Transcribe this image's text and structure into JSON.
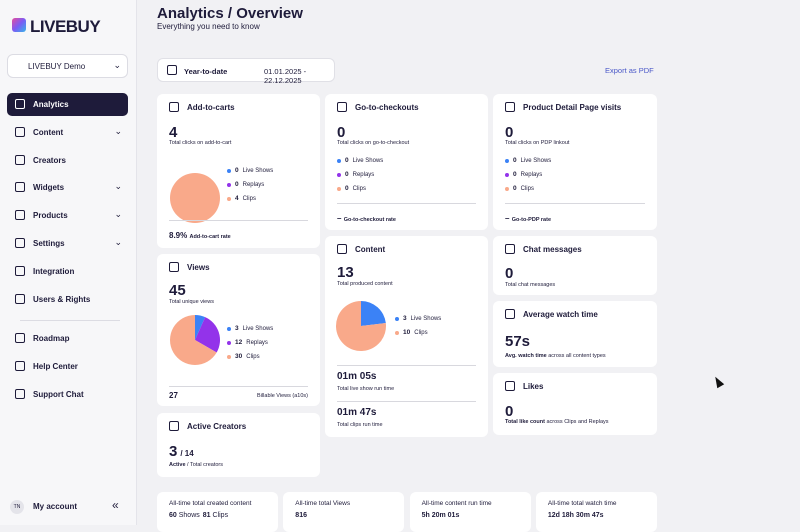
{
  "sidebar": {
    "brand": "LIVEBUY",
    "workspace": "LIVEBUY Demo",
    "nav": [
      "Analytics",
      "Content",
      "Creators",
      "Widgets",
      "Products",
      "Settings",
      "Integration",
      "Users & Rights"
    ],
    "secondary": [
      "Roadmap",
      "Help Center",
      "Support Chat"
    ],
    "account": {
      "initials": "TN",
      "label": "My account"
    }
  },
  "header": {
    "title": "Analytics / Overview",
    "subtitle": "Everything you need to know"
  },
  "toolbar": {
    "range": "Year-to-date",
    "dates": "01.01.2025 - 22.12.2025",
    "export": "Export as PDF"
  },
  "cards": {
    "add_to_carts": {
      "title": "Add-to-carts",
      "value": 4,
      "caption": "Total clicks on add-to-cart",
      "breakdown": [
        {
          "value": 0,
          "label": "Live Shows",
          "color": "#3b82f6"
        },
        {
          "value": 0,
          "label": "Replays",
          "color": "#9333ea"
        },
        {
          "value": 4,
          "label": "Clips",
          "color": "#f9a98a"
        }
      ],
      "rate": "8.9%",
      "rate_label": "Add-to-cart rate"
    },
    "go_to_checkouts": {
      "title": "Go-to-checkouts",
      "value": 0,
      "caption": "Total clicks on go-to-checkout",
      "breakdown": [
        {
          "value": 0,
          "label": "Live Shows",
          "color": "#3b82f6"
        },
        {
          "value": 0,
          "label": "Replays",
          "color": "#9333ea"
        },
        {
          "value": 0,
          "label": "Clips",
          "color": "#f9a98a"
        }
      ],
      "rate": "–",
      "rate_label": "Go-to-checkout rate"
    },
    "pdp_visits": {
      "title": "Product Detail Page visits",
      "value": 0,
      "caption": "Total clicks on PDP linkout",
      "breakdown": [
        {
          "value": 0,
          "label": "Live Shows",
          "color": "#3b82f6"
        },
        {
          "value": 0,
          "label": "Replays",
          "color": "#9333ea"
        },
        {
          "value": 0,
          "label": "Clips",
          "color": "#f9a98a"
        }
      ],
      "rate": "–",
      "rate_label": "Go-to-PDP rate"
    },
    "views": {
      "title": "Views",
      "value": 45,
      "caption": "Total unique views",
      "breakdown": [
        {
          "value": 3,
          "label": "Live Shows",
          "color": "#3b82f6"
        },
        {
          "value": 12,
          "label": "Replays",
          "color": "#9333ea"
        },
        {
          "value": 30,
          "label": "Clips",
          "color": "#f9a98a"
        }
      ],
      "billable": 27,
      "billable_label": "Billable Views (a10s)"
    },
    "content": {
      "title": "Content",
      "value": 13,
      "caption": "Total produced content",
      "breakdown": [
        {
          "value": 3,
          "label": "Live Shows",
          "color": "#3b82f6"
        },
        {
          "value": 10,
          "label": "Clips",
          "color": "#f9a98a"
        }
      ],
      "runtimes": [
        {
          "value": "01m 05s",
          "label": "Total live show run time"
        },
        {
          "value": "01m 47s",
          "label": "Total clips run time"
        }
      ]
    },
    "chat": {
      "title": "Chat messages",
      "value": 0,
      "caption": "Total chat messages"
    },
    "watch_time": {
      "title": "Average watch time",
      "value": "57s",
      "caption_bold": "Avg. watch time",
      "caption": "across all content types"
    },
    "likes": {
      "title": "Likes",
      "value": 0,
      "caption_bold": "Total like count",
      "caption": "across Clips and Replays"
    },
    "creators": {
      "title": "Active Creators",
      "value": 3,
      "total": "/ 14",
      "caption_bold": "Active",
      "caption": "/ Total creators"
    }
  },
  "totals": [
    {
      "label": "All-time total created content",
      "parts": [
        {
          "value": 60,
          "unit": "Shows"
        },
        {
          "value": 81,
          "unit": "Clips"
        }
      ]
    },
    {
      "label": "All-time total Views",
      "value": 816
    },
    {
      "label": "All-time content run time",
      "value": "5h 20m 01s"
    },
    {
      "label": "All-time total watch time",
      "value": "12d 18h 30m 47s"
    }
  ]
}
